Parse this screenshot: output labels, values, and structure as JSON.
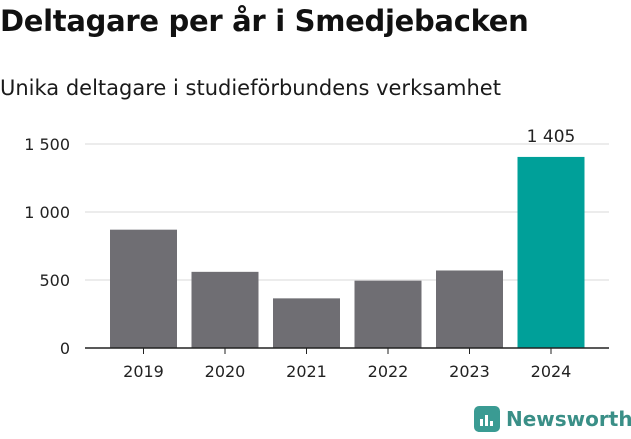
{
  "title": "Deltagare per år i Smedjebacken",
  "subtitle": "Unika deltagare i studieförbundens verksamhet",
  "brand": {
    "name": "Newsworthy",
    "color": "#3a9b93",
    "icon": "newsworthy-chart-icon"
  },
  "colors": {
    "bar": "#6f6e73",
    "highlight": "#00a099",
    "grid": "#d9d9d9",
    "axis": "#222222",
    "text": "#222222"
  },
  "chart_data": {
    "type": "bar",
    "categories": [
      "2019",
      "2020",
      "2021",
      "2022",
      "2023",
      "2024"
    ],
    "values": [
      870,
      560,
      365,
      495,
      570,
      1405
    ],
    "highlight_index": 5,
    "data_labels": {
      "5": "1 405"
    },
    "ylim": [
      0,
      1500
    ],
    "yticks": [
      0,
      500,
      1000,
      1500
    ],
    "ytick_labels": [
      "0",
      "500",
      "1 000",
      "1 500"
    ],
    "grid": true,
    "xlabel": "",
    "ylabel": ""
  }
}
